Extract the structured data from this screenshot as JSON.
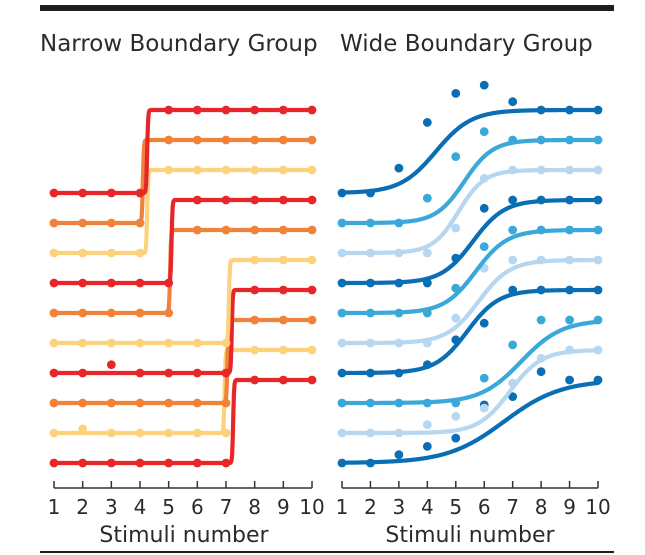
{
  "chart_data": [
    {
      "type": "line",
      "title": "Narrow Boundary Group",
      "xlabel": "Stimuli number",
      "ylabel": "",
      "x": [
        1,
        2,
        3,
        4,
        5,
        6,
        7,
        8,
        9,
        10
      ],
      "xlim": [
        1,
        10
      ],
      "grid": false,
      "legend": "none",
      "rows": [
        {
          "color": "#e8262a",
          "boundary": 4.25,
          "slope": 60,
          "points": [
            0,
            0,
            0,
            0,
            1,
            1,
            1,
            1,
            1,
            1
          ]
        },
        {
          "color": "#f0823a",
          "boundary": 4.1,
          "slope": 60,
          "points": [
            0,
            0,
            0,
            0,
            1,
            1,
            1,
            1,
            1,
            1
          ]
        },
        {
          "color": "#fdd27c",
          "boundary": 4.25,
          "slope": 60,
          "points": [
            0,
            0,
            0,
            0,
            1,
            1,
            1,
            1,
            1,
            1
          ]
        },
        {
          "color": "#e8262a",
          "boundary": 5.1,
          "slope": 60,
          "points": [
            0,
            0,
            0,
            0,
            0,
            1,
            1,
            1,
            1,
            1
          ]
        },
        {
          "color": "#f0823a",
          "boundary": 5.05,
          "slope": 60,
          "points": [
            0,
            0,
            0,
            0,
            0,
            1,
            1,
            1,
            1,
            1
          ]
        },
        {
          "color": "#fdd27c",
          "boundary": 7.1,
          "slope": 60,
          "points": [
            0,
            0,
            0,
            0,
            0,
            0,
            0,
            1,
            1,
            1
          ]
        },
        {
          "color": "#e8262a",
          "boundary": 7.2,
          "slope": 60,
          "points": [
            0,
            0,
            0.1,
            0,
            0,
            0,
            0,
            1,
            1,
            1
          ]
        },
        {
          "color": "#f0823a",
          "boundary": 7.05,
          "slope": 60,
          "points": [
            0,
            0,
            0,
            0,
            0,
            0,
            0,
            1,
            1,
            1
          ]
        },
        {
          "color": "#fdd27c",
          "boundary": 6.95,
          "slope": 60,
          "points": [
            0,
            0.05,
            0,
            0,
            0,
            0,
            0,
            1,
            1,
            1
          ]
        },
        {
          "color": "#e8262a",
          "boundary": 7.25,
          "slope": 60,
          "points": [
            0,
            0,
            0,
            0,
            0,
            0,
            0,
            1,
            1,
            1
          ]
        }
      ]
    },
    {
      "type": "line",
      "title": "Wide Boundary Group",
      "xlabel": "Stimuli number",
      "ylabel": "",
      "x": [
        1,
        2,
        3,
        4,
        5,
        6,
        7,
        8,
        9,
        10
      ],
      "xlim": [
        1,
        10
      ],
      "grid": false,
      "legend": "none",
      "rows": [
        {
          "color": "#0a6eb4",
          "boundary": 4.3,
          "slope": 1.6,
          "points": [
            0,
            0,
            0.3,
            0.85,
            1.2,
            1.3,
            1.1,
            1,
            1,
            1
          ]
        },
        {
          "color": "#3aa8d8",
          "boundary": 5.3,
          "slope": 2.0,
          "points": [
            0,
            0,
            0,
            0.3,
            0.8,
            1.1,
            1,
            1,
            1,
            1
          ]
        },
        {
          "color": "#b7d6ef",
          "boundary": 5.1,
          "slope": 2.2,
          "points": [
            0,
            0,
            0,
            0,
            0.3,
            0.9,
            1,
            1,
            1,
            1
          ]
        },
        {
          "color": "#0a6eb4",
          "boundary": 5.6,
          "slope": 1.8,
          "points": [
            0,
            0,
            0,
            0,
            0.3,
            0.9,
            1,
            1,
            1,
            1
          ]
        },
        {
          "color": "#3aa8d8",
          "boundary": 5.7,
          "slope": 1.8,
          "points": [
            0,
            0,
            0,
            0,
            0.3,
            0.8,
            1,
            1,
            1,
            1
          ]
        },
        {
          "color": "#b7d6ef",
          "boundary": 5.8,
          "slope": 1.8,
          "points": [
            0,
            0,
            0,
            0,
            0.3,
            0.9,
            1,
            1,
            1,
            1
          ]
        },
        {
          "color": "#0a6eb4",
          "boundary": 5.4,
          "slope": 1.8,
          "points": [
            0,
            0,
            0,
            0.1,
            0.4,
            0.6,
            1,
            1,
            1,
            1
          ]
        },
        {
          "color": "#3aa8d8",
          "boundary": 7.3,
          "slope": 1.4,
          "points": [
            0,
            0,
            0,
            0,
            0,
            0.3,
            0.7,
            1,
            1,
            1
          ]
        },
        {
          "color": "#b7d6ef",
          "boundary": 6.9,
          "slope": 1.8,
          "points": [
            0,
            0,
            0,
            0.1,
            0.2,
            0.3,
            0.6,
            0.9,
            1,
            1
          ]
        },
        {
          "color": "#0a6eb4",
          "boundary": 6.7,
          "slope": 1.0,
          "points": [
            0,
            0,
            0.1,
            0.2,
            0.3,
            0.7,
            0.8,
            1.1,
            1,
            1
          ]
        }
      ]
    }
  ]
}
